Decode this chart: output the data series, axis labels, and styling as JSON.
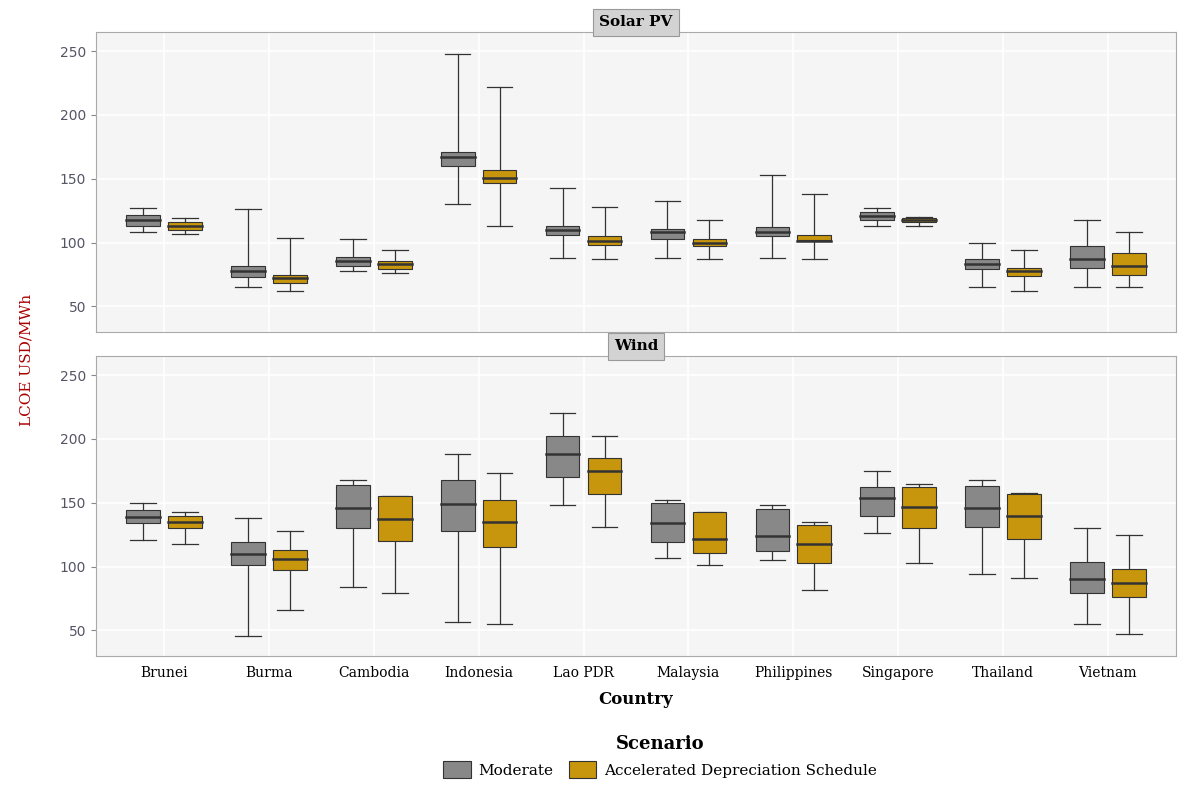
{
  "countries": [
    "Brunei",
    "Burma",
    "Cambodia",
    "Indonesia",
    "Lao PDR",
    "Malaysia",
    "Philippines",
    "Singapore",
    "Thailand",
    "Vietnam"
  ],
  "solar_pv": {
    "moderate": {
      "whislo": [
        108,
        65,
        78,
        130,
        88,
        88,
        88,
        113,
        65,
        65
      ],
      "q1": [
        113,
        73,
        82,
        160,
        106,
        103,
        105,
        118,
        79,
        80
      ],
      "med": [
        118,
        78,
        86,
        167,
        110,
        108,
        108,
        121,
        83,
        87
      ],
      "q3": [
        122,
        82,
        89,
        171,
        113,
        111,
        112,
        124,
        87,
        97
      ],
      "whishi": [
        127,
        126,
        103,
        248,
        143,
        133,
        153,
        127,
        100,
        118
      ]
    },
    "accelerated": {
      "whislo": [
        107,
        62,
        76,
        113,
        87,
        87,
        87,
        113,
        62,
        65
      ],
      "q1": [
        110,
        68,
        79,
        147,
        98,
        97,
        102,
        116,
        74,
        75
      ],
      "med": [
        113,
        72,
        83,
        151,
        101,
        100,
        101,
        118,
        78,
        82
      ],
      "q3": [
        116,
        75,
        86,
        157,
        105,
        103,
        106,
        119,
        80,
        92
      ],
      "whishi": [
        119,
        104,
        94,
        222,
        128,
        118,
        138,
        120,
        94,
        108
      ]
    }
  },
  "wind": {
    "moderate": {
      "whislo": [
        121,
        46,
        84,
        57,
        148,
        107,
        105,
        126,
        94,
        55
      ],
      "q1": [
        134,
        101,
        130,
        128,
        170,
        119,
        112,
        140,
        131,
        79
      ],
      "med": [
        139,
        110,
        146,
        149,
        188,
        134,
        124,
        154,
        146,
        90
      ],
      "q3": [
        144,
        119,
        164,
        168,
        202,
        150,
        145,
        162,
        163,
        104
      ],
      "whishi": [
        150,
        138,
        168,
        188,
        220,
        152,
        148,
        175,
        168,
        130
      ]
    },
    "accelerated": {
      "whislo": [
        118,
        66,
        79,
        55,
        131,
        101,
        82,
        103,
        91,
        47
      ],
      "q1": [
        130,
        97,
        120,
        115,
        157,
        111,
        103,
        130,
        122,
        76
      ],
      "med": [
        135,
        106,
        137,
        135,
        175,
        122,
        118,
        147,
        140,
        87
      ],
      "q3": [
        140,
        113,
        155,
        152,
        185,
        143,
        133,
        162,
        157,
        98
      ],
      "whishi": [
        143,
        128,
        155,
        173,
        202,
        143,
        135,
        165,
        158,
        125
      ]
    }
  },
  "colors": {
    "moderate": "#888888",
    "accelerated": "#C8960C"
  },
  "ylim": [
    30,
    265
  ],
  "yticks": [
    50,
    100,
    150,
    200,
    250
  ],
  "ylabel": "LCOE USD/MWh",
  "xlabel": "Country",
  "title_solar": "Solar PV",
  "title_wind": "Wind",
  "bg_color": "#F0F0F0",
  "panel_bg": "#F5F5F5",
  "grid_color": "white",
  "title_strip_color": "#D3D3D3"
}
